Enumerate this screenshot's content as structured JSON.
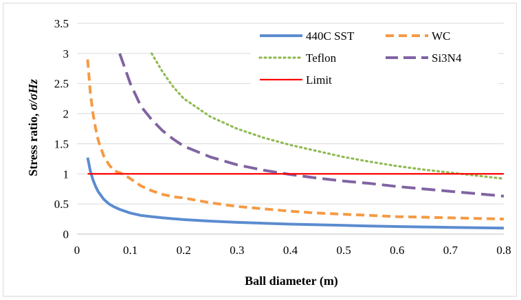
{
  "chart_data": {
    "type": "line",
    "title": "",
    "xlabel": "Ball diameter (m)",
    "ylabel_main": "Stress ratio, ",
    "ylabel_symbol": "σ/σHz",
    "xlim": [
      0,
      0.8
    ],
    "ylim": [
      0,
      3.5
    ],
    "xticks": [
      "0",
      "0.1",
      "0.2",
      "0.3",
      "0.4",
      "0.5",
      "0.6",
      "0.7",
      "0.8"
    ],
    "yticks": [
      "0",
      "0.5",
      "1",
      "1.5",
      "2",
      "2.5",
      "3",
      "3.5"
    ],
    "grid": "horizontal",
    "legend_position": "top-right",
    "x": [
      0.02,
      0.025,
      0.03,
      0.035,
      0.04,
      0.05,
      0.06,
      0.07,
      0.08,
      0.09,
      0.1,
      0.12,
      0.14,
      0.16,
      0.18,
      0.2,
      0.25,
      0.3,
      0.35,
      0.4,
      0.45,
      0.5,
      0.55,
      0.6,
      0.65,
      0.7,
      0.75,
      0.8
    ],
    "series": [
      {
        "name": "440C SST",
        "color": "#5b8ccf",
        "style": "solid",
        "values": [
          1.27,
          1.05,
          0.9,
          0.79,
          0.7,
          0.58,
          0.5,
          0.45,
          0.41,
          0.38,
          0.35,
          0.31,
          0.29,
          0.27,
          0.255,
          0.24,
          0.215,
          0.195,
          0.18,
          0.165,
          0.155,
          0.145,
          0.135,
          0.125,
          0.118,
          0.112,
          0.106,
          0.1
        ]
      },
      {
        "name": "WC",
        "color": "#f59a44",
        "style": "dashed",
        "values": [
          2.9,
          2.35,
          2.0,
          1.75,
          1.55,
          1.3,
          1.15,
          1.05,
          1.02,
          0.98,
          0.92,
          0.8,
          0.72,
          0.66,
          0.62,
          0.6,
          0.52,
          0.46,
          0.42,
          0.38,
          0.35,
          0.33,
          0.31,
          0.29,
          0.28,
          0.27,
          0.26,
          0.25
        ]
      },
      {
        "name": "Teflon",
        "color": "#8fba52",
        "style": "dotted",
        "values": [
          null,
          null,
          null,
          null,
          null,
          null,
          null,
          null,
          null,
          null,
          null,
          null,
          3.0,
          2.7,
          2.45,
          2.25,
          1.95,
          1.75,
          1.6,
          1.48,
          1.38,
          1.28,
          1.2,
          1.13,
          1.07,
          1.02,
          0.97,
          0.92
        ]
      },
      {
        "name": "Si3N4",
        "color": "#8064a2",
        "style": "longdash",
        "values": [
          null,
          null,
          null,
          null,
          null,
          null,
          null,
          null,
          3.0,
          2.75,
          2.5,
          2.12,
          1.9,
          1.72,
          1.58,
          1.46,
          1.28,
          1.15,
          1.06,
          0.99,
          0.93,
          0.88,
          0.84,
          0.79,
          0.75,
          0.71,
          0.67,
          0.63
        ]
      },
      {
        "name": "Limit",
        "color": "#ff0000",
        "style": "solid",
        "values": [
          1,
          1,
          1,
          1,
          1,
          1,
          1,
          1,
          1,
          1,
          1,
          1,
          1,
          1,
          1,
          1,
          1,
          1,
          1,
          1,
          1,
          1,
          1,
          1,
          1,
          1,
          1,
          1
        ]
      }
    ]
  }
}
